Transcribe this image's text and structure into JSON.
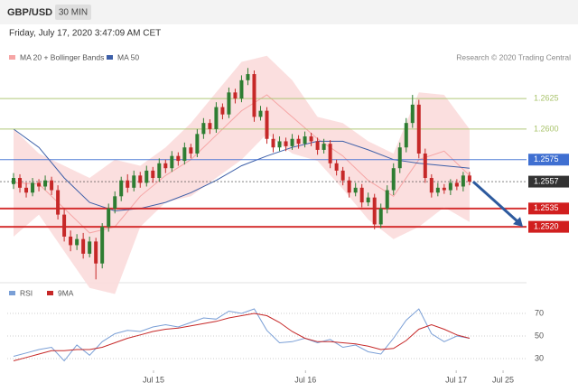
{
  "header": {
    "symbol": "GBP/USD",
    "timeframe": "30 MIN",
    "date": "Friday, July 17, 2020 3:47:09 AM CET"
  },
  "chart_data": [
    {
      "type": "candlestick",
      "source": "Research © 2020 Trading Central",
      "xlim": [
        -1,
        81
      ],
      "ylim": [
        1.2475,
        1.2665
      ],
      "bull_color": "#2e7d32",
      "bear_color": "#c62828",
      "open": [
        1.2555,
        1.256,
        1.2552,
        1.2548,
        1.2556,
        1.2553,
        1.2558,
        1.255,
        1.253,
        1.2512,
        1.2505,
        1.251,
        1.2498,
        1.2508,
        1.249,
        1.252,
        1.2535,
        1.2545,
        1.2558,
        1.2552,
        1.2562,
        1.2556,
        1.2566,
        1.256,
        1.2572,
        1.2568,
        1.2578,
        1.2574,
        1.2585,
        1.258,
        1.2596,
        1.2605,
        1.26,
        1.2618,
        1.2612,
        1.263,
        1.2625,
        1.264,
        1.2645,
        1.261,
        1.2615,
        1.2592,
        1.2585,
        1.259,
        1.2586,
        1.2592,
        1.2588,
        1.2594,
        1.259,
        1.2583,
        1.2588,
        1.2572,
        1.2566,
        1.2558,
        1.2548,
        1.2552,
        1.254,
        1.2544,
        1.2522,
        1.2535,
        1.255,
        1.2568,
        1.2585,
        1.2605,
        1.262,
        1.258,
        1.256,
        1.2548,
        1.2552,
        1.255,
        1.2556,
        1.2553,
        1.2562
      ],
      "high": [
        1.2564,
        1.2563,
        1.2556,
        1.256,
        1.2559,
        1.2562,
        1.2561,
        1.2554,
        1.2535,
        1.2517,
        1.2514,
        1.2515,
        1.2512,
        1.2511,
        1.2523,
        1.2539,
        1.2549,
        1.2561,
        1.2563,
        1.2566,
        1.2565,
        1.257,
        1.2569,
        1.2576,
        1.2575,
        1.2582,
        1.2581,
        1.2589,
        1.2588,
        1.26,
        1.2609,
        1.2608,
        1.2622,
        1.2621,
        1.2634,
        1.2633,
        1.2644,
        1.265,
        1.2648,
        1.2619,
        1.2618,
        1.2596,
        1.2594,
        1.2593,
        1.2596,
        1.2595,
        1.2598,
        1.2597,
        1.2593,
        1.2592,
        1.2591,
        1.2575,
        1.2569,
        1.2561,
        1.2556,
        1.2555,
        1.2548,
        1.2547,
        1.2539,
        1.2554,
        1.2572,
        1.2589,
        1.2609,
        1.2628,
        1.2624,
        1.2584,
        1.2563,
        1.2556,
        1.2555,
        1.2559,
        1.2559,
        1.2565,
        1.2565
      ],
      "low": [
        1.2551,
        1.2548,
        1.2544,
        1.2545,
        1.2549,
        1.255,
        1.2546,
        1.2526,
        1.2508,
        1.25,
        1.2501,
        1.2494,
        1.2495,
        1.2477,
        1.2486,
        1.2516,
        1.2531,
        1.2541,
        1.2548,
        1.2549,
        1.2552,
        1.2553,
        1.2556,
        1.2557,
        1.2564,
        1.2565,
        1.257,
        1.2571,
        1.2576,
        1.2577,
        1.2592,
        1.2596,
        1.2597,
        1.2608,
        1.2609,
        1.2621,
        1.2622,
        1.2636,
        1.2606,
        1.2607,
        1.2588,
        1.2581,
        1.2582,
        1.2582,
        1.2583,
        1.2584,
        1.2585,
        1.2586,
        1.2579,
        1.258,
        1.2568,
        1.2562,
        1.2554,
        1.2544,
        1.2545,
        1.2536,
        1.2537,
        1.2518,
        1.2519,
        1.2531,
        1.2546,
        1.2564,
        1.2581,
        1.2601,
        1.2576,
        1.2556,
        1.2544,
        1.2545,
        1.2547,
        1.2546,
        1.255,
        1.2549,
        1.2554
      ],
      "close": [
        1.256,
        1.2552,
        1.2548,
        1.2556,
        1.2553,
        1.2558,
        1.255,
        1.253,
        1.2512,
        1.2505,
        1.251,
        1.2498,
        1.2508,
        1.249,
        1.252,
        1.2535,
        1.2545,
        1.2558,
        1.2552,
        1.2562,
        1.2556,
        1.2566,
        1.256,
        1.2572,
        1.2568,
        1.2578,
        1.2574,
        1.2585,
        1.258,
        1.2596,
        1.2605,
        1.26,
        1.2618,
        1.2612,
        1.263,
        1.2625,
        1.264,
        1.2645,
        1.261,
        1.2615,
        1.2592,
        1.2585,
        1.259,
        1.2586,
        1.2592,
        1.2588,
        1.2594,
        1.259,
        1.2583,
        1.2588,
        1.2572,
        1.2566,
        1.2558,
        1.2548,
        1.2552,
        1.254,
        1.2544,
        1.2522,
        1.2535,
        1.255,
        1.2568,
        1.2585,
        1.2605,
        1.262,
        1.258,
        1.256,
        1.2548,
        1.2552,
        1.255,
        1.2556,
        1.2553,
        1.2562,
        1.2557
      ],
      "bands": {
        "name": "MA 20 + Bollinger Bands",
        "color": "#f6a5a5",
        "fill": "#fbdcdc",
        "x": [
          0,
          4,
          8,
          12,
          16,
          20,
          24,
          28,
          32,
          36,
          40,
          44,
          48,
          52,
          56,
          60,
          64,
          68,
          72
        ],
        "middle": [
          1.2556,
          1.2555,
          1.2535,
          1.2515,
          1.252,
          1.2545,
          1.2562,
          1.2575,
          1.2595,
          1.2615,
          1.2628,
          1.261,
          1.2592,
          1.2578,
          1.2558,
          1.2545,
          1.2575,
          1.2582,
          1.2562
        ],
        "upper": [
          1.26,
          1.258,
          1.257,
          1.256,
          1.2575,
          1.257,
          1.2585,
          1.2605,
          1.263,
          1.2655,
          1.266,
          1.264,
          1.261,
          1.2605,
          1.259,
          1.258,
          1.263,
          1.2628,
          1.26
        ],
        "lower": [
          1.2512,
          1.253,
          1.25,
          1.247,
          1.2465,
          1.252,
          1.254,
          1.2545,
          1.256,
          1.2575,
          1.2596,
          1.258,
          1.2574,
          1.2551,
          1.2526,
          1.251,
          1.252,
          1.2536,
          1.2524
        ]
      },
      "ma": {
        "name": "MA 50",
        "color": "#3d5fa8",
        "x": [
          0,
          4,
          8,
          12,
          16,
          20,
          24,
          28,
          32,
          36,
          40,
          44,
          48,
          52,
          56,
          60,
          64,
          68,
          72
        ],
        "values": [
          1.26,
          1.2585,
          1.256,
          1.254,
          1.2533,
          1.2535,
          1.254,
          1.2548,
          1.2558,
          1.257,
          1.2578,
          1.2585,
          1.259,
          1.259,
          1.2583,
          1.2575,
          1.2572,
          1.257,
          1.2568
        ]
      },
      "levels": [
        {
          "value": 1.2625,
          "color": "#a9c36b",
          "line_width": 1,
          "label_box": false
        },
        {
          "value": 1.26,
          "label": "1.2600",
          "color": "#a9c36b",
          "line_width": 1,
          "label_box": false
        },
        {
          "value": 1.2575,
          "color": "#3f6fd1",
          "line_width": 1,
          "label_box": true
        },
        {
          "value": 1.2557,
          "color": "#333333",
          "line_width": 1,
          "label_box": true,
          "dashed": true
        },
        {
          "value": 1.2535,
          "color": "#d11f1f",
          "line_width": 2,
          "label_box": true
        },
        {
          "value": 1.252,
          "label": "1.2520",
          "color": "#d11f1f",
          "line_width": 2,
          "label_box": true
        }
      ],
      "forecast_color": "#2d5a9e"
    },
    {
      "type": "line",
      "xlim": [
        -1,
        81
      ],
      "ylim": [
        20,
        80
      ],
      "yticks": [
        30,
        50,
        70
      ],
      "grid": true,
      "xticks": [
        {
          "value": 22.1,
          "label": "Jul 15"
        },
        {
          "value": 46.1,
          "label": "Jul 16"
        },
        {
          "value": 69.9,
          "label": "Jul 17"
        },
        {
          "value": 77.3,
          "label": "Jul 25"
        }
      ],
      "series": [
        {
          "name": "RSI",
          "color": "#7a9fd6",
          "x": [
            0,
            2,
            4,
            6,
            8,
            10,
            12,
            14,
            16,
            18,
            20,
            22,
            24,
            26,
            28,
            30,
            32,
            34,
            36,
            38,
            40,
            42,
            44,
            46,
            48,
            50,
            52,
            54,
            56,
            58,
            60,
            62,
            64,
            66,
            68,
            70,
            72
          ],
          "values": [
            32,
            35,
            38,
            40,
            28,
            42,
            33,
            45,
            52,
            55,
            54,
            58,
            60,
            58,
            62,
            66,
            65,
            72,
            70,
            74,
            55,
            44,
            45,
            48,
            44,
            47,
            40,
            42,
            36,
            34,
            48,
            64,
            74,
            52,
            45,
            50,
            48
          ]
        },
        {
          "name": "9MA",
          "color": "#c62828",
          "x": [
            0,
            2,
            4,
            6,
            8,
            10,
            12,
            14,
            16,
            18,
            20,
            22,
            24,
            26,
            28,
            30,
            32,
            34,
            36,
            38,
            40,
            42,
            44,
            46,
            48,
            50,
            52,
            54,
            56,
            58,
            60,
            62,
            64,
            66,
            68,
            70,
            72
          ],
          "values": [
            28,
            31,
            34,
            37,
            37,
            38,
            38,
            40,
            44,
            48,
            51,
            54,
            56,
            57,
            59,
            61,
            63,
            66,
            68,
            70,
            68,
            62,
            54,
            48,
            45,
            45,
            44,
            43,
            41,
            38,
            39,
            46,
            56,
            60,
            56,
            51,
            48
          ]
        }
      ]
    }
  ]
}
